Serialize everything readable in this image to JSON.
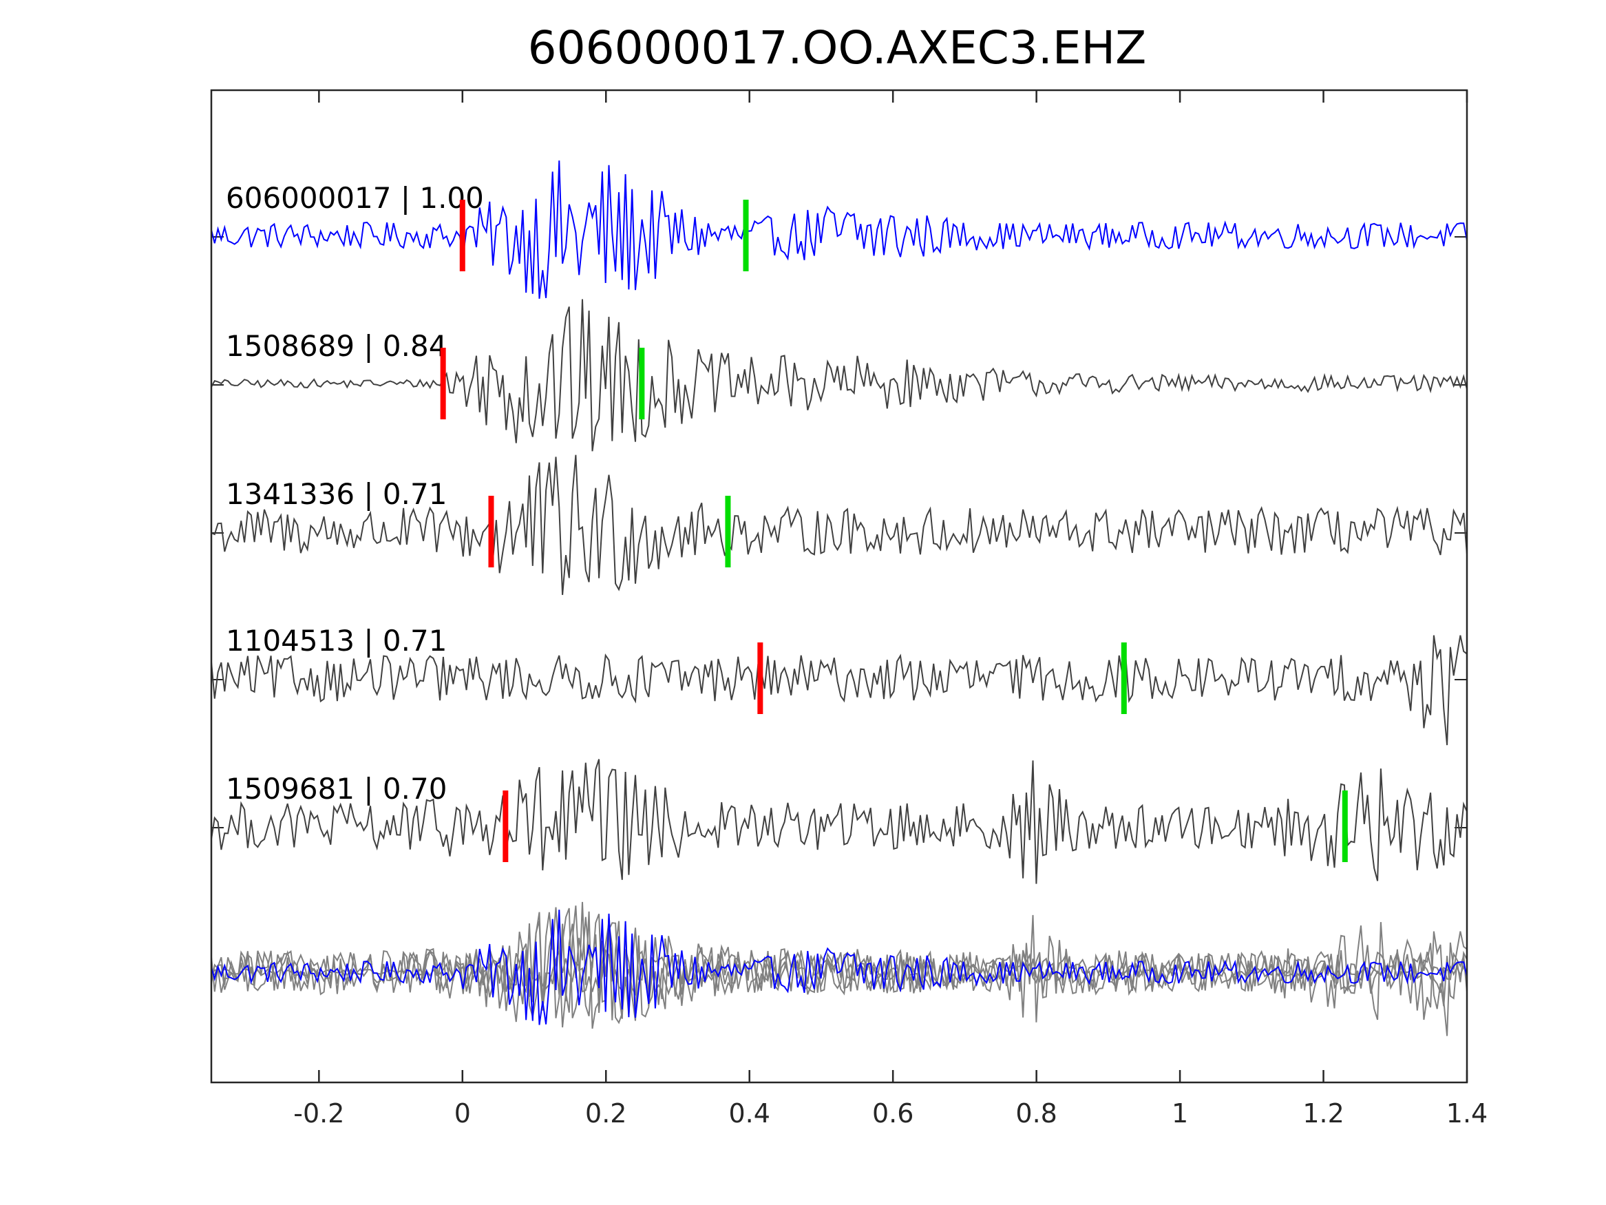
{
  "chart_data": {
    "type": "line",
    "title": "606000017.OO.AXEC3.EHZ",
    "xlabel": "",
    "ylabel": "",
    "xlim": [
      -0.35,
      1.4
    ],
    "x_ticks": [
      -0.2,
      0,
      0.2,
      0.4,
      0.6,
      0.8,
      1,
      1.2,
      1.4
    ],
    "x_tick_labels": [
      "-0.2",
      "0",
      "0.2",
      "0.4",
      "0.6",
      "0.8",
      "1",
      "1.2",
      "1.4"
    ],
    "grid": false,
    "legend": "none",
    "series": [
      {
        "label": "606000017 | 1.00",
        "color": "#0000ff",
        "p_pick": 0.0,
        "s_pick": 0.395
      },
      {
        "label": "1508689 | 0.84",
        "color": "#404040",
        "p_pick": -0.027,
        "s_pick": 0.25
      },
      {
        "label": "1341336 | 0.71",
        "color": "#404040",
        "p_pick": 0.04,
        "s_pick": 0.37
      },
      {
        "label": "1104513 | 0.71",
        "color": "#404040",
        "p_pick": 0.415,
        "s_pick": 0.922
      },
      {
        "label": "1509681 | 0.70",
        "color": "#404040",
        "p_pick": 0.06,
        "s_pick": 1.23
      }
    ],
    "stack_colors": {
      "template": "#0000ff",
      "others": "#808080"
    },
    "pick_colors": {
      "p": "#ff0000",
      "s": "#00dd00"
    }
  }
}
